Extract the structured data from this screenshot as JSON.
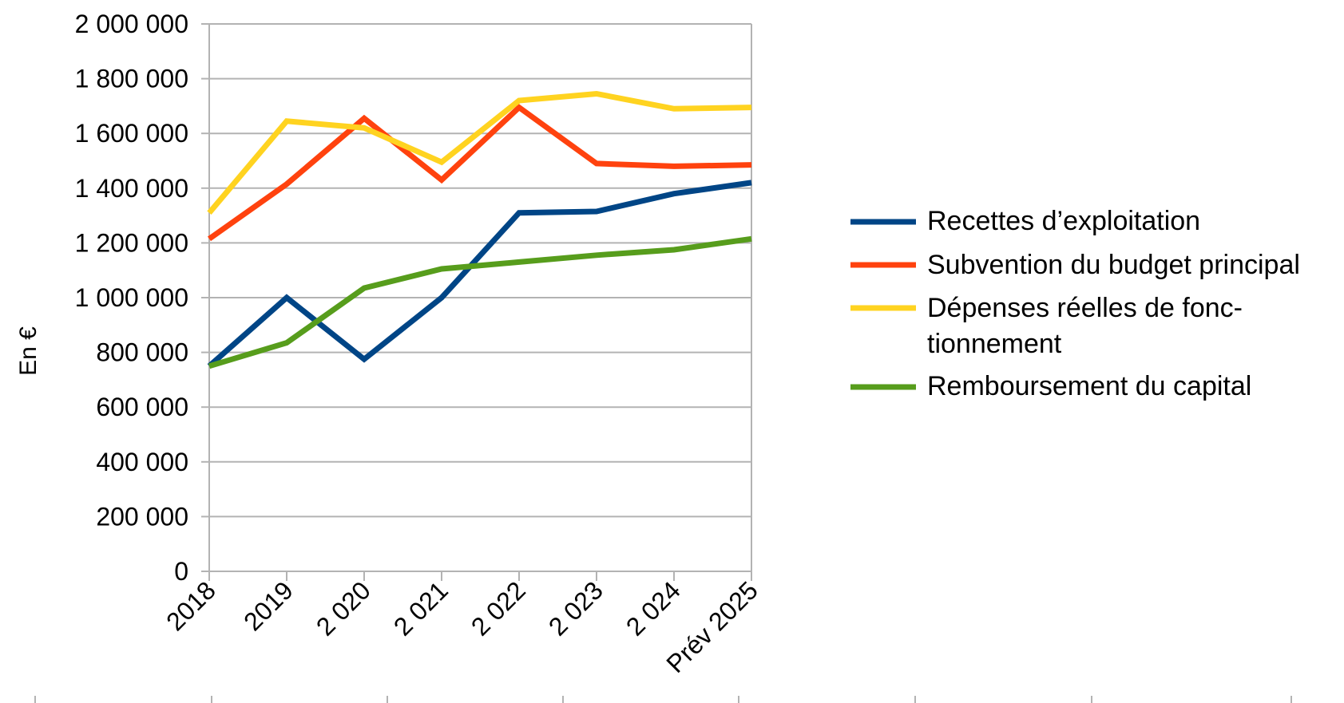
{
  "chart_data": {
    "type": "line",
    "title": "",
    "xlabel": "",
    "ylabel": "En €",
    "ylim": [
      0,
      2000000
    ],
    "yticks": [
      0,
      200000,
      400000,
      600000,
      800000,
      1000000,
      1200000,
      1400000,
      1600000,
      1800000,
      2000000
    ],
    "ytick_labels": [
      "0",
      "200 000",
      "400 000",
      "600 000",
      "800 000",
      "1 000 000",
      "1 200 000",
      "1 400 000",
      "1 600 000",
      "1 800 000",
      "2 000 000"
    ],
    "categories": [
      "2018",
      "2019",
      "2 020",
      "2 021",
      "2 022",
      "2 023",
      "2 024",
      "Prév 2025"
    ],
    "grid": true,
    "legend_position": "right",
    "series": [
      {
        "name": "Recettes d’exploitation",
        "color": "#004586",
        "values": [
          750000,
          1000000,
          775000,
          1000000,
          1310000,
          1315000,
          1380000,
          1420000
        ]
      },
      {
        "name": "Subvention du budget principal",
        "color": "#ff420e",
        "values": [
          1215000,
          1415000,
          1655000,
          1430000,
          1695000,
          1490000,
          1480000,
          1485000
        ]
      },
      {
        "name": "Dépenses réelles de fonc- tionnement",
        "legend_lines": [
          "Dépenses réelles de fonc-",
          "tionnement"
        ],
        "color": "#ffd320",
        "values": [
          1310000,
          1645000,
          1620000,
          1495000,
          1720000,
          1745000,
          1690000,
          1695000
        ]
      },
      {
        "name": "Remboursement du capital",
        "color": "#579d1c",
        "values": [
          750000,
          835000,
          1035000,
          1105000,
          1130000,
          1155000,
          1175000,
          1215000
        ]
      }
    ]
  }
}
